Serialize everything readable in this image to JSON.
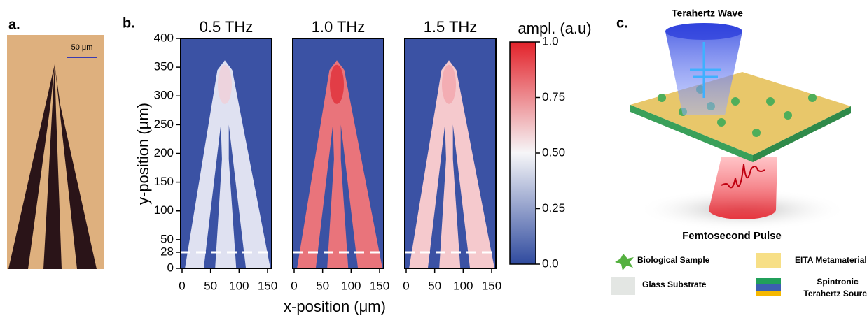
{
  "panel_a": {
    "label": "a.",
    "scale_bar": "50 μm"
  },
  "panel_b": {
    "label": "b.",
    "titles": [
      "0.5 THz",
      "1.0 THz",
      "1.5 THz"
    ],
    "y_label": "y-position (μm)",
    "x_label": "x-position (μm)",
    "ylim": [
      0,
      400
    ],
    "yticks": [
      0,
      28,
      50,
      100,
      150,
      200,
      250,
      300,
      350,
      400
    ],
    "xlim": [
      0,
      150
    ],
    "xticks": [
      0,
      50,
      100,
      150
    ],
    "colorbar": {
      "label": "ampl. (a.u)",
      "lim": [
        0,
        1
      ],
      "ticks": [
        {
          "value": 1,
          "label": "1.0"
        },
        0.75,
        {
          "value": 0.5,
          "label": "0.50"
        },
        0.25,
        {
          "value": 0,
          "label": "0.0"
        }
      ]
    }
  },
  "panel_c": {
    "label": "c.",
    "top_label": "Terahertz Wave",
    "bottom_label": "Femtosecond Pulse",
    "legend": [
      "Biological Sample",
      "EITA Metamaterial",
      "Glass Substrate",
      "Spintronic",
      "Terahertz Source"
    ]
  }
}
